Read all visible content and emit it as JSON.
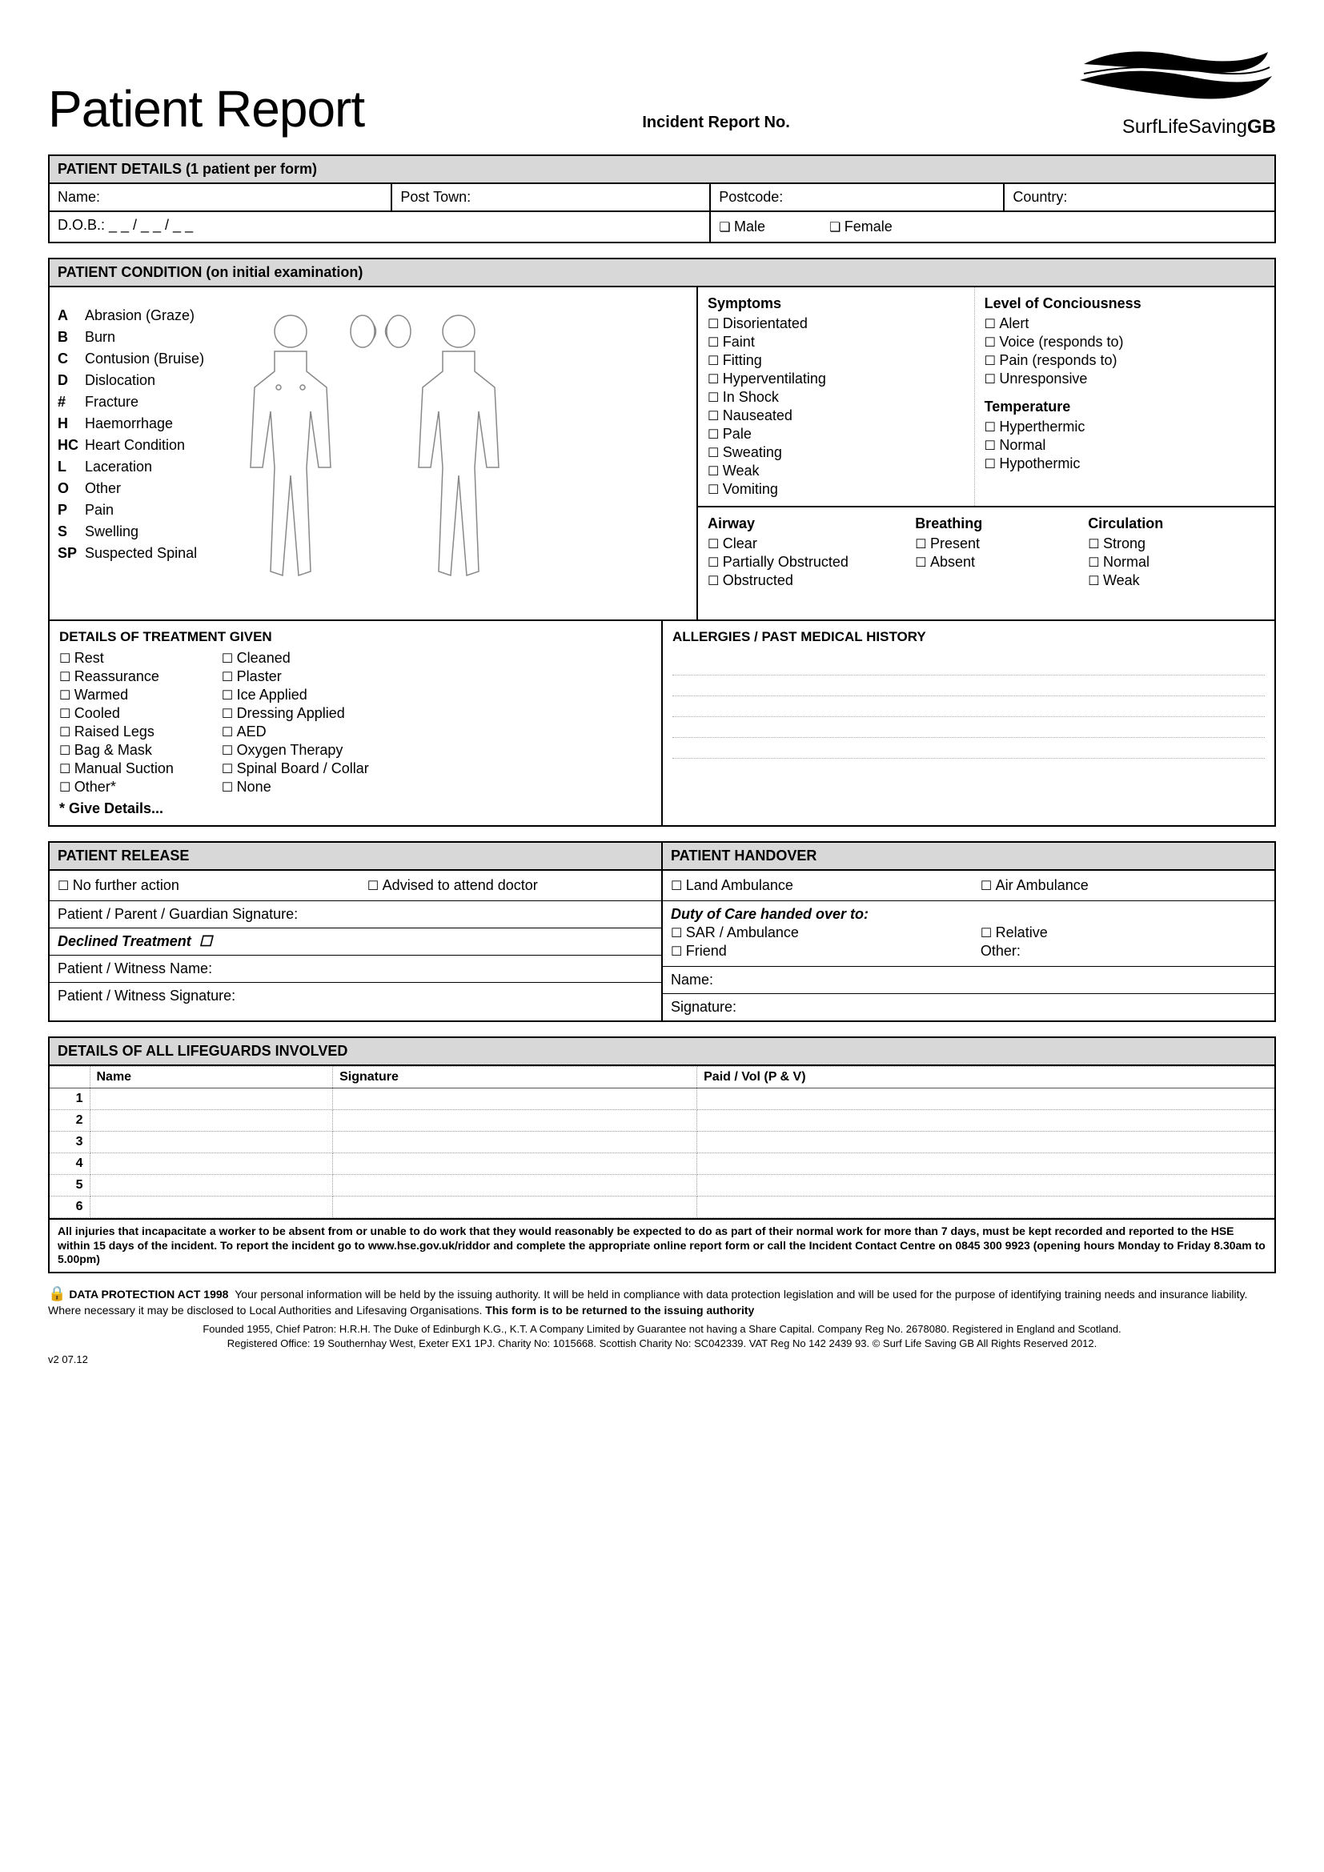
{
  "header": {
    "title": "Patient Report",
    "incident_label": "Incident Report No.",
    "logo_text_1": "Surf",
    "logo_text_2": "Life",
    "logo_text_3": "Saving",
    "logo_text_4": "GB"
  },
  "patient_details": {
    "section_title": "PATIENT DETAILS (1 patient per form)",
    "name_label": "Name:",
    "post_town_label": "Post Town:",
    "postcode_label": "Postcode:",
    "country_label": "Country:",
    "dob_label": "D.O.B.: _ _ / _ _ / _ _",
    "male": "Male",
    "female": "Female"
  },
  "condition": {
    "section_title": "PATIENT CONDITION (on initial examination)",
    "legend": [
      {
        "k": "A",
        "v": "Abrasion (Graze)"
      },
      {
        "k": "B",
        "v": "Burn"
      },
      {
        "k": "C",
        "v": "Contusion (Bruise)"
      },
      {
        "k": "D",
        "v": "Dislocation"
      },
      {
        "k": "#",
        "v": "Fracture"
      },
      {
        "k": "H",
        "v": "Haemorrhage"
      },
      {
        "k": "HC",
        "v": "Heart Condition"
      },
      {
        "k": "L",
        "v": "Laceration"
      },
      {
        "k": "O",
        "v": "Other"
      },
      {
        "k": "P",
        "v": "Pain"
      },
      {
        "k": "S",
        "v": "Swelling"
      },
      {
        "k": "SP",
        "v": "Suspected Spinal"
      }
    ],
    "symptoms_title": "Symptoms",
    "symptoms": [
      "Disorientated",
      "Faint",
      "Fitting",
      "Hyperventilating",
      "In Shock",
      "Nauseated",
      "Pale",
      "Sweating",
      "Weak",
      "Vomiting"
    ],
    "loc_title": "Level of Conciousness",
    "loc": [
      "Alert",
      "Voice (responds to)",
      "Pain (responds to)",
      "Unresponsive"
    ],
    "temp_title": "Temperature",
    "temp": [
      "Hyperthermic",
      "Normal",
      "Hypothermic"
    ],
    "airway_title": "Airway",
    "airway": [
      "Clear",
      "Partially Obstructed",
      "Obstructed"
    ],
    "breathing_title": "Breathing",
    "breathing": [
      "Present",
      "Absent"
    ],
    "circulation_title": "Circulation",
    "circulation": [
      "Strong",
      "Normal",
      "Weak"
    ]
  },
  "treatment": {
    "title": "DETAILS OF TREATMENT GIVEN",
    "col1": [
      "Rest",
      "Reassurance",
      "Warmed",
      "Cooled",
      "Raised Legs",
      "Bag & Mask",
      "Manual Suction",
      "Other*"
    ],
    "col2": [
      "Cleaned",
      "Plaster",
      "Ice Applied",
      "Dressing Applied",
      "AED",
      "Oxygen Therapy",
      "Spinal Board / Collar",
      "None"
    ],
    "give_details": "* Give Details...",
    "allergies_title": "ALLERGIES / PAST MEDICAL HISTORY"
  },
  "release": {
    "title": "PATIENT RELEASE",
    "no_action": "No further action",
    "advised": "Advised to attend doctor",
    "sig_label": "Patient / Parent / Guardian Signature:",
    "declined": "Declined Treatment",
    "witness_name": "Patient / Witness Name:",
    "witness_sig": "Patient / Witness Signature:"
  },
  "handover": {
    "title": "PATIENT HANDOVER",
    "land": "Land Ambulance",
    "air": "Air Ambulance",
    "duty_title": "Duty of Care handed over to:",
    "sar": "SAR / Ambulance",
    "relative": "Relative",
    "friend": "Friend",
    "other": "Other:",
    "name": "Name:",
    "signature": "Signature:"
  },
  "lifeguards": {
    "title": "DETAILS OF ALL LIFEGUARDS INVOLVED",
    "cols": [
      "",
      "Name",
      "Signature",
      "Paid / Vol (P & V)"
    ],
    "rows": [
      "1",
      "2",
      "3",
      "4",
      "5",
      "6"
    ]
  },
  "disclaimer": "All injuries that incapacitate a worker to be absent from or unable to do work that they would reasonably be expected to do as part of their normal work for more than 7 days, must be kept recorded and reported to the HSE within 15 days of the incident. To report the incident go to www.hse.gov.uk/riddor and complete the appropriate online report form or call the Incident Contact Centre on 0845 300 9923 (opening hours Monday to Friday 8.30am to 5.00pm)",
  "dpa": {
    "title": "DATA PROTECTION ACT 1998",
    "body1": "Your personal information will be held by the issuing authority. It will be held in compliance with data protection legislation and will be used for the purpose of identifying training needs and insurance liability. Where necessary it may be disclosed to Local Authorities and Lifesaving Organisations.",
    "body2": "This form is to be returned to the issuing authority"
  },
  "footer": {
    "l1": "Founded 1955, Chief Patron: H.R.H. The Duke of Edinburgh K.G., K.T. A Company Limited by Guarantee not having a Share Capital. Company Reg No. 2678080.  Registered in England and Scotland.",
    "l2": "Registered Office: 19 Southernhay West, Exeter EX1 1PJ. Charity No: 1015668. Scottish Charity No: SC042339. VAT Reg No 142 2439 93.  © Surf Life Saving GB All Rights Reserved 2012."
  },
  "version": "v2 07.12"
}
